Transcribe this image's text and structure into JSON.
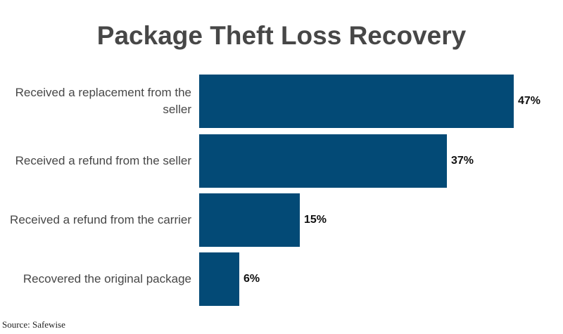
{
  "title": "Package Theft Loss Recovery",
  "source": "Source: Safewise",
  "colors": {
    "bar": "#034a76",
    "title": "#474747",
    "label": "#474747"
  },
  "bars": [
    {
      "label": "Received a replacement from the seller",
      "value_label": "47%"
    },
    {
      "label": "Received a refund from the seller",
      "value_label": "37%"
    },
    {
      "label": "Received a refund from the carrier",
      "value_label": "15%"
    },
    {
      "label": "Recovered the original package",
      "value_label": "6%"
    }
  ],
  "chart_data": {
    "type": "bar",
    "orientation": "horizontal",
    "title": "Package Theft Loss Recovery",
    "categories": [
      "Received a replacement from the seller",
      "Received a refund from the seller",
      "Received a refund from the carrier",
      "Recovered the original package"
    ],
    "values": [
      47,
      37,
      15,
      6
    ],
    "unit": "%",
    "xlabel": "",
    "ylabel": "",
    "data_labels": [
      "47%",
      "37%",
      "15%",
      "6%"
    ],
    "grid": false,
    "legend": null,
    "annotations": [
      "Source: Safewise"
    ]
  }
}
